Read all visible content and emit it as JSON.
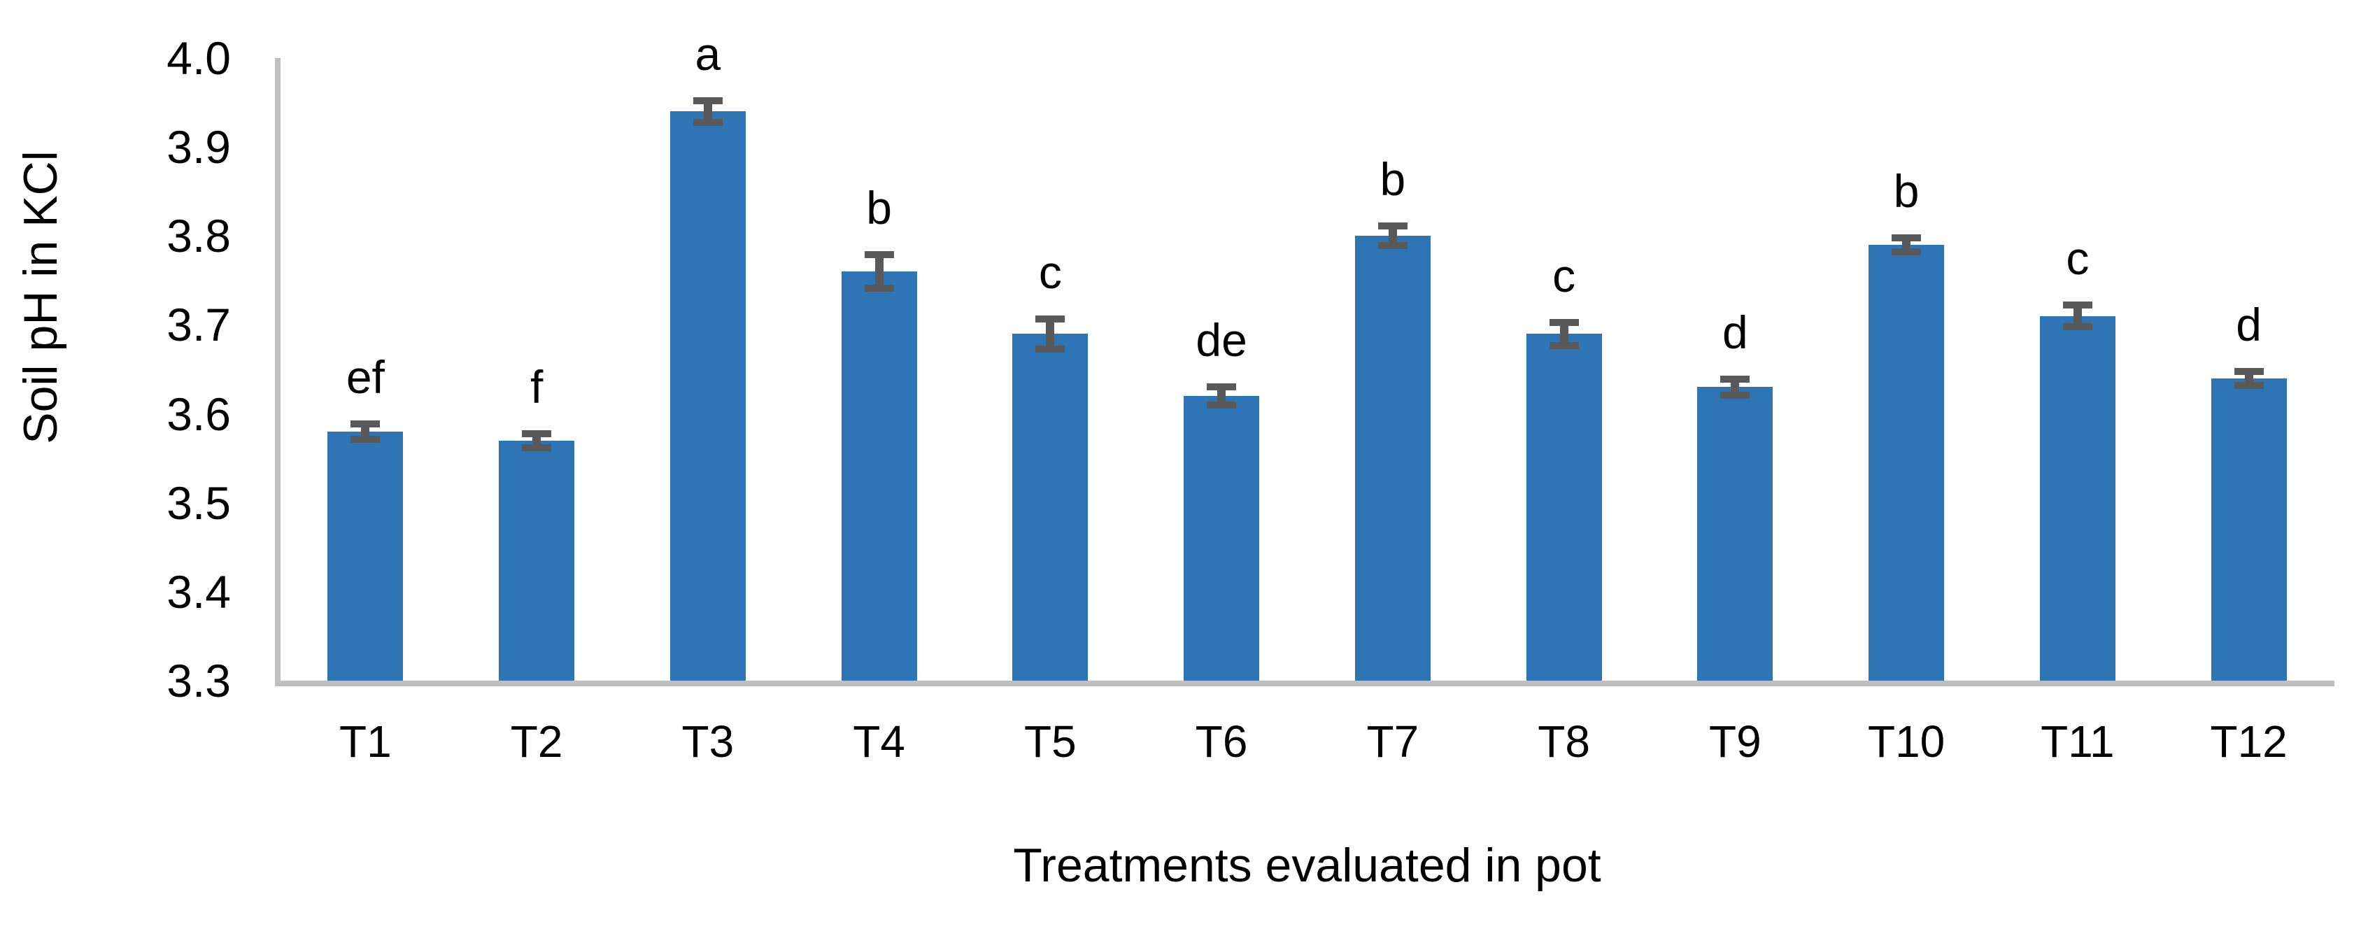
{
  "chart_data": {
    "type": "bar",
    "title": "",
    "categories": [
      "T1",
      "T2",
      "T3",
      "T4",
      "T5",
      "T6",
      "T7",
      "T8",
      "T9",
      "T10",
      "T11",
      "T12"
    ],
    "values": [
      3.58,
      3.57,
      3.94,
      3.76,
      3.69,
      3.62,
      3.8,
      3.69,
      3.63,
      3.79,
      3.71,
      3.64
    ],
    "errors": [
      0.009,
      0.008,
      0.012,
      0.019,
      0.017,
      0.01,
      0.011,
      0.013,
      0.009,
      0.008,
      0.012,
      0.008
    ],
    "sig_letters": [
      "ef",
      "f",
      "a",
      "b",
      "c",
      "de",
      "b",
      "c",
      "d",
      "b",
      "c",
      "d"
    ],
    "xlabel": "Treatments evaluated in pot",
    "ylabel": "Soil pH in KCl",
    "ylim": [
      3.3,
      4.0
    ],
    "ytick_step": 0.1,
    "ytick_labels": [
      "4.0",
      "3.9",
      "3.8",
      "3.7",
      "3.6",
      "3.5",
      "3.4",
      "3.3"
    ],
    "grid": false,
    "legend": "none",
    "colors": {
      "bar": "#2E75B6",
      "error_bar": "#595959",
      "axis_line": "#BFBFBF",
      "text": "#000000",
      "background": "#FFFFFF"
    }
  }
}
